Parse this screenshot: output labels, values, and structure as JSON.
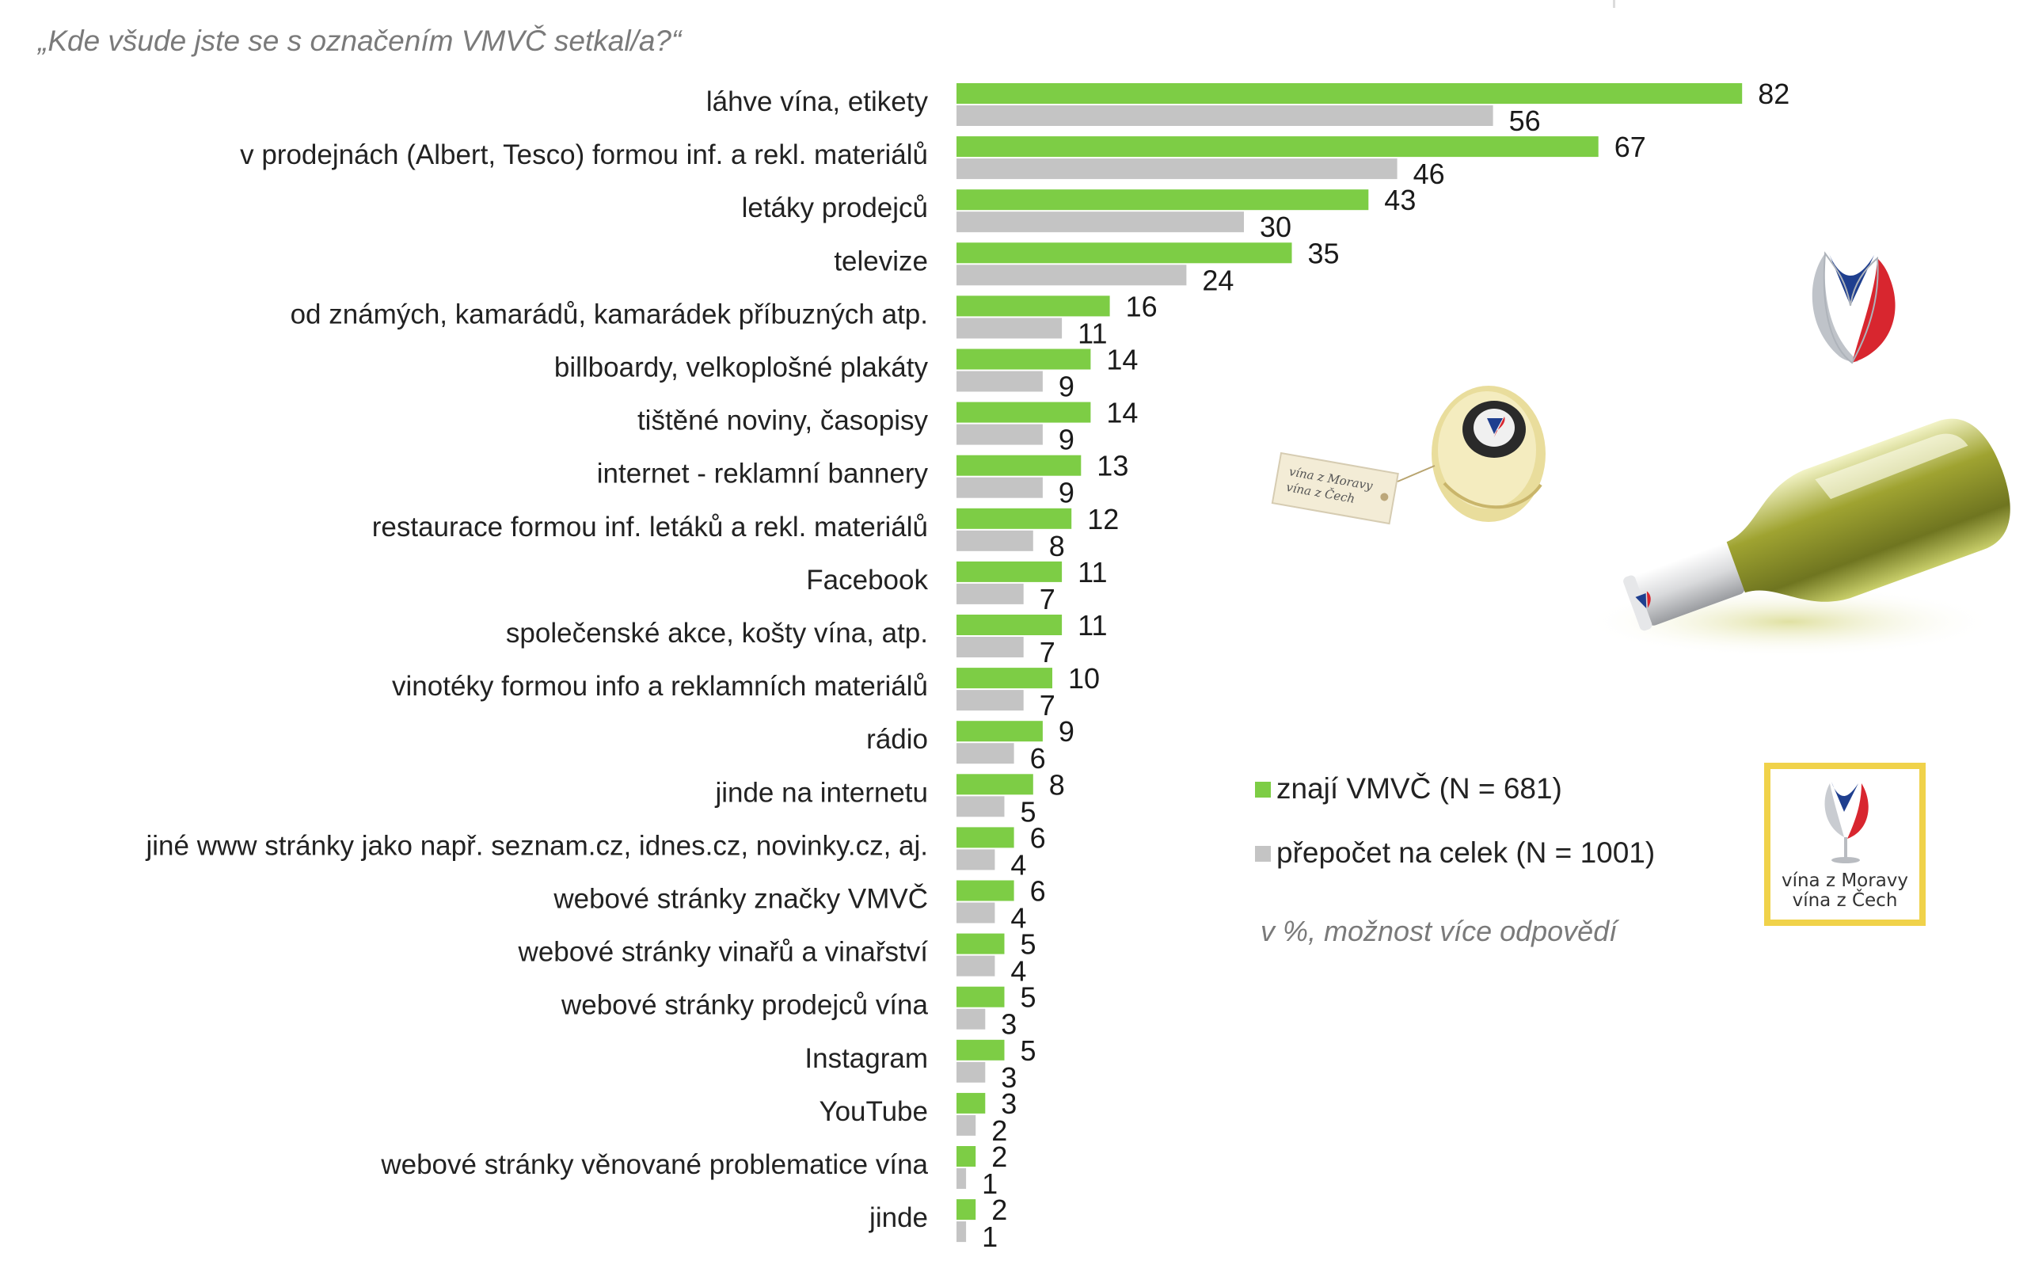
{
  "question": "„Kde všude jste se s označením VMVČ setkal/a?“",
  "legend": {
    "green_label": "znají VMVČ (N = 681)",
    "grey_label": "přepočet na celek (N = 1001)"
  },
  "note": "v %, možnost více odpovědí",
  "logo": {
    "line1": "vína z Moravy",
    "line2": "vína z Čech"
  },
  "tag": {
    "line1": "vína z Moravy",
    "line2": "vína z Čech"
  },
  "colors": {
    "green": "#7dcd45",
    "grey": "#c4c4c4",
    "logo_red": "#d8262f",
    "logo_blue": "#1f3f8f",
    "logo_frame": "#f0d24a"
  },
  "chart_data": {
    "type": "bar",
    "orientation": "horizontal",
    "xlim": [
      0,
      100
    ],
    "categories": [
      "láhve vína, etikety",
      "v prodejnách (Albert, Tesco) formou inf. a rekl. materiálů",
      "letáky prodejců",
      "televize",
      "od známých, kamarádů, kamarádek příbuzných atp.",
      "billboardy, velkoplošné plakáty",
      "tištěné noviny, časopisy",
      "internet - reklamní bannery",
      "restaurace formou inf. letáků a rekl. materiálů",
      "Facebook",
      "společenské akce, košty vína, atp.",
      "vinotéky formou info a reklamních materiálů",
      "rádio",
      "jinde na internetu",
      "jiné www stránky jako např. seznam.cz, idnes.cz, novinky.cz, aj.",
      "webové stránky značky VMVČ",
      "webové stránky vinařů a vinařství",
      "webové stránky prodejců vína",
      "Instagram",
      "YouTube",
      "webové stránky věnované problematice vína",
      "jinde"
    ],
    "series": [
      {
        "name": "znají VMVČ (N = 681)",
        "color": "#7dcd45",
        "values": [
          82,
          67,
          43,
          35,
          16,
          14,
          14,
          13,
          12,
          11,
          11,
          10,
          9,
          8,
          6,
          6,
          5,
          5,
          5,
          3,
          2,
          2
        ]
      },
      {
        "name": "přepočet na celek (N = 1001)",
        "color": "#c4c4c4",
        "values": [
          56,
          46,
          30,
          24,
          11,
          9,
          9,
          9,
          8,
          7,
          7,
          7,
          6,
          5,
          4,
          4,
          4,
          3,
          3,
          2,
          1,
          1
        ]
      }
    ]
  }
}
